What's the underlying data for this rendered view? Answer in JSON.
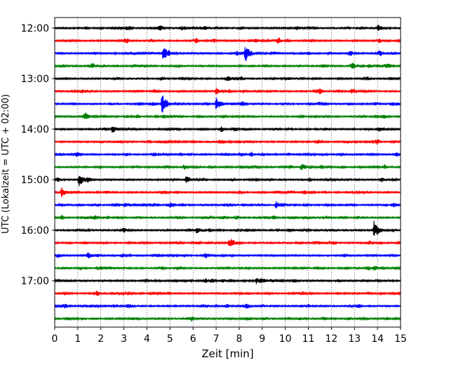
{
  "chart_data": {
    "type": "line",
    "title": "",
    "xlabel": "Zeit  [min]",
    "ylabel": "UTC (Lokalzeit = UTC + 02:00)",
    "xlim": [
      0,
      15
    ],
    "x_ticks": [
      0,
      1,
      2,
      3,
      4,
      5,
      6,
      7,
      8,
      9,
      10,
      11,
      12,
      13,
      14,
      15
    ],
    "y_ticks": [
      "12:00",
      "13:00",
      "14:00",
      "15:00",
      "16:00",
      "17:00"
    ],
    "grid_x": true,
    "trace_interval_min": 15,
    "trace_length_min": 15,
    "colors_cycle": [
      "#000000",
      "#ff0000",
      "#0000ff",
      "#008000"
    ],
    "traces": [
      {
        "start": "12:00",
        "color": "#000000",
        "events": [
          [
            14.0,
            1.5
          ]
        ]
      },
      {
        "start": "12:15",
        "color": "#ff0000",
        "events": []
      },
      {
        "start": "12:30",
        "color": "#0000ff",
        "events": [
          [
            4.7,
            3
          ],
          [
            8.25,
            4.5
          ]
        ]
      },
      {
        "start": "12:45",
        "color": "#008000",
        "events": []
      },
      {
        "start": "13:00",
        "color": "#000000",
        "events": []
      },
      {
        "start": "13:15",
        "color": "#ff0000",
        "events": [
          [
            7.0,
            1.5
          ]
        ]
      },
      {
        "start": "13:30",
        "color": "#0000ff",
        "events": [
          [
            4.65,
            5
          ],
          [
            7.0,
            3
          ]
        ]
      },
      {
        "start": "13:45",
        "color": "#008000",
        "events": [
          [
            1.3,
            1.5
          ]
        ]
      },
      {
        "start": "14:00",
        "color": "#000000",
        "events": [
          [
            2.5,
            1.5
          ],
          [
            14.0,
            1.3
          ]
        ]
      },
      {
        "start": "14:15",
        "color": "#ff0000",
        "events": []
      },
      {
        "start": "14:30",
        "color": "#0000ff",
        "events": []
      },
      {
        "start": "14:45",
        "color": "#008000",
        "events": [
          [
            5.6,
            1.3
          ],
          [
            10.7,
            1.5
          ]
        ]
      },
      {
        "start": "15:00",
        "color": "#000000",
        "events": [
          [
            1.05,
            3
          ],
          [
            5.7,
            1.8
          ]
        ]
      },
      {
        "start": "15:15",
        "color": "#ff0000",
        "events": [
          [
            0.3,
            1.8
          ]
        ]
      },
      {
        "start": "15:30",
        "color": "#0000ff",
        "events": [
          [
            9.6,
            1.6
          ]
        ]
      },
      {
        "start": "15:45",
        "color": "#008000",
        "events": []
      },
      {
        "start": "16:00",
        "color": "#000000",
        "events": [
          [
            6.15,
            1.8
          ],
          [
            13.85,
            4
          ]
        ]
      },
      {
        "start": "16:15",
        "color": "#ff0000",
        "events": [
          [
            7.55,
            1.6
          ]
        ]
      },
      {
        "start": "16:30",
        "color": "#0000ff",
        "events": []
      },
      {
        "start": "16:45",
        "color": "#008000",
        "events": [
          [
            13.85,
            1.2
          ]
        ]
      },
      {
        "start": "17:00",
        "color": "#000000",
        "events": [
          [
            8.75,
            1.3
          ]
        ]
      },
      {
        "start": "17:15",
        "color": "#ff0000",
        "events": []
      },
      {
        "start": "17:30",
        "color": "#0000ff",
        "events": []
      },
      {
        "start": "17:45",
        "color": "#008000",
        "events": []
      }
    ]
  }
}
